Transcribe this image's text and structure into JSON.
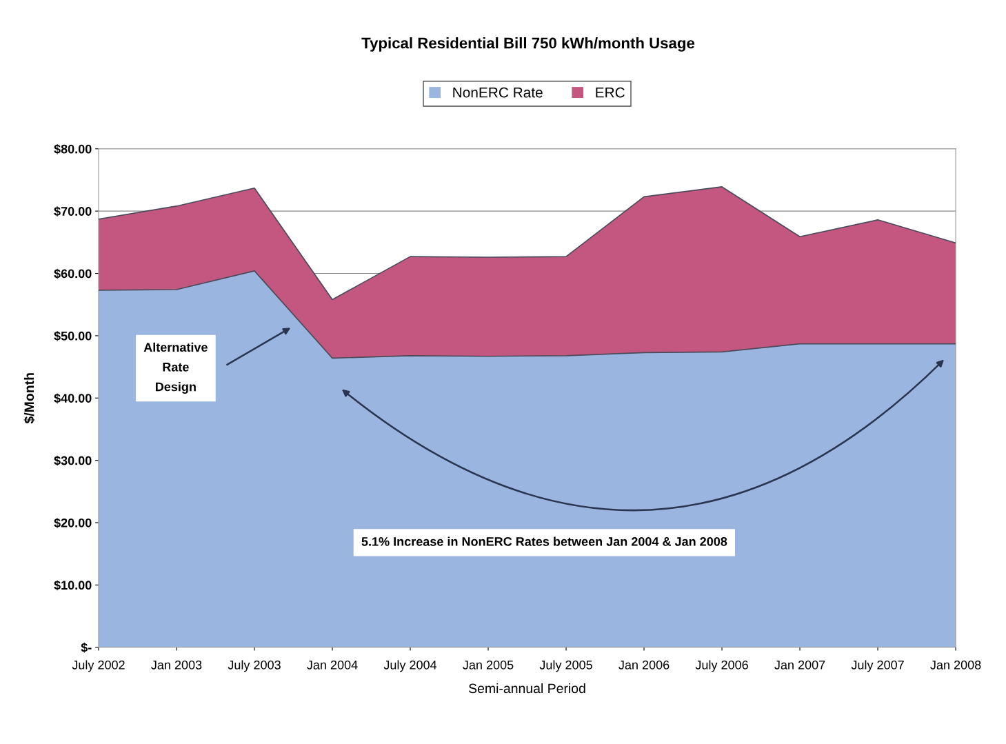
{
  "chart_data": {
    "type": "area",
    "stacked": true,
    "title": "Typical Residential Bill 750 kWh/month Usage",
    "xlabel": "Semi-annual Period",
    "ylabel": "$/Month",
    "categories": [
      "July 2002",
      "Jan 2003",
      "July 2003",
      "Jan 2004",
      "July 2004",
      "Jan 2005",
      "July 2005",
      "Jan 2006",
      "July 2006",
      "Jan 2007",
      "July 2007",
      "Jan 2008"
    ],
    "series": [
      {
        "name": "NonERC Rate",
        "color": "#9ab6e0",
        "values": [
          57.3,
          57.4,
          60.4,
          46.4,
          46.8,
          46.7,
          46.8,
          47.3,
          47.4,
          48.7,
          48.7,
          48.7
        ]
      },
      {
        "name": "ERC",
        "color": "#c4577f",
        "values": [
          11.4,
          13.4,
          13.3,
          9.4,
          15.9,
          15.9,
          15.9,
          25.0,
          26.5,
          17.2,
          19.9,
          16.2
        ]
      }
    ],
    "ylim": [
      0,
      80
    ],
    "yticks": [
      {
        "value": 0,
        "label": "$-"
      },
      {
        "value": 10,
        "label": "$10.00"
      },
      {
        "value": 20,
        "label": "$20.00"
      },
      {
        "value": 30,
        "label": "$30.00"
      },
      {
        "value": 40,
        "label": "$40.00"
      },
      {
        "value": 50,
        "label": "$50.00"
      },
      {
        "value": 60,
        "label": "$60.00"
      },
      {
        "value": 70,
        "label": "$70.00"
      },
      {
        "value": 80,
        "label": "$80.00"
      }
    ],
    "grid": "y",
    "legend": "top",
    "annotations": [
      "Alternative\nRate\nDesign",
      "5.1% Increase in NonERC Rates between Jan 2004 & Jan 2008"
    ]
  }
}
